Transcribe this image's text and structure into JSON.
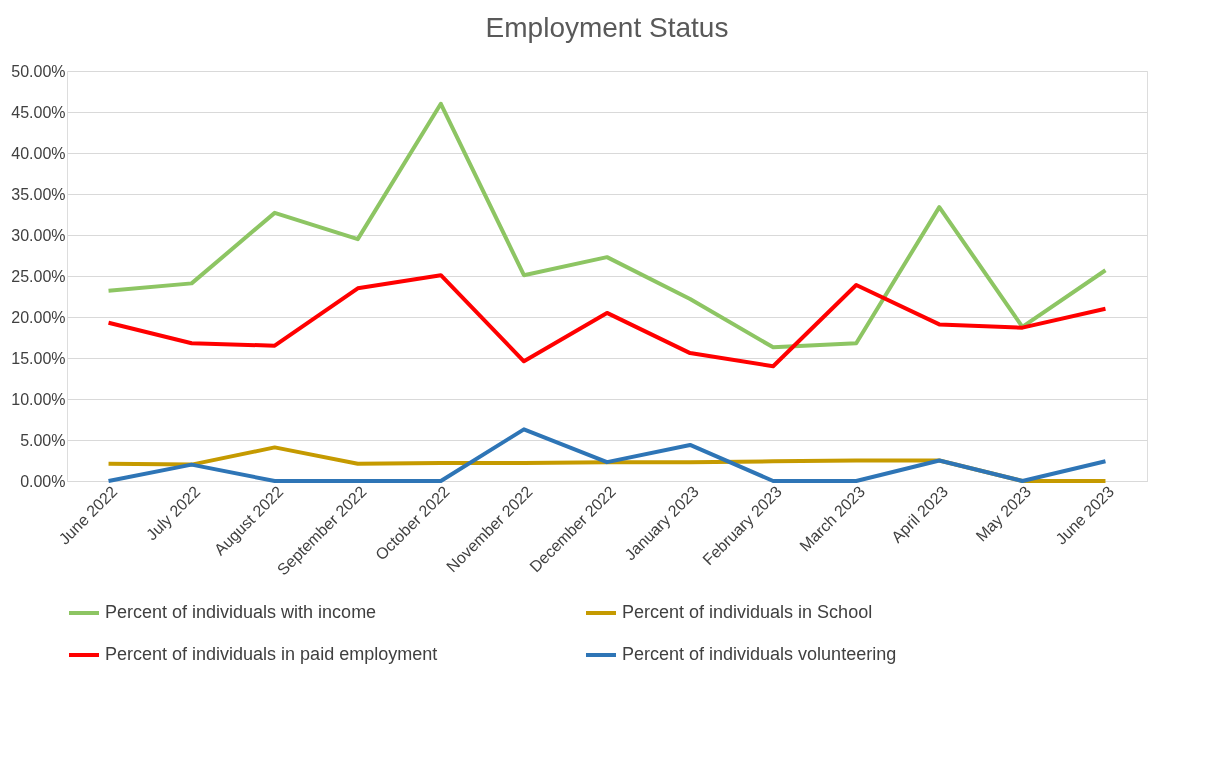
{
  "chart_data": {
    "type": "line",
    "title": "Employment Status",
    "categories": [
      "June 2022",
      "July 2022",
      "August 2022",
      "September 2022",
      "October 2022",
      "November 2022",
      "December 2022",
      "January 2023",
      "February 2023",
      "March 2023",
      "April 2023",
      "May 2023",
      "June 2023"
    ],
    "series": [
      {
        "name": "Percent of individuals with income",
        "color": "#8dc563",
        "values": [
          23.2,
          24.1,
          32.7,
          29.5,
          46.0,
          25.1,
          27.3,
          22.2,
          16.3,
          16.8,
          33.4,
          18.8,
          25.7
        ]
      },
      {
        "name": "Percent of individuals in School",
        "color": "#c59a00",
        "values": [
          2.1,
          2.0,
          4.1,
          2.1,
          2.2,
          2.2,
          2.3,
          2.3,
          2.4,
          2.5,
          2.5,
          0,
          0
        ]
      },
      {
        "name": "Percent of individuals in paid employment",
        "color": "#ff0000",
        "values": [
          19.3,
          16.8,
          16.5,
          23.5,
          25.1,
          14.6,
          20.5,
          15.6,
          14.0,
          23.9,
          19.1,
          18.7,
          21.0
        ]
      },
      {
        "name": "Percent of individuals volunteering",
        "color": "#2e75b6",
        "values": [
          0,
          2.0,
          0,
          0,
          0,
          6.3,
          2.3,
          4.4,
          0,
          0,
          2.5,
          0,
          2.4
        ]
      }
    ],
    "ylim": [
      0,
      50
    ],
    "yticks": [
      {
        "value": 0,
        "label": "0.00%"
      },
      {
        "value": 5,
        "label": "5.00%"
      },
      {
        "value": 10,
        "label": "10.00%"
      },
      {
        "value": 15,
        "label": "15.00%"
      },
      {
        "value": 20,
        "label": "20.00%"
      },
      {
        "value": 25,
        "label": "25.00%"
      },
      {
        "value": 30,
        "label": "30.00%"
      },
      {
        "value": 35,
        "label": "35.00%"
      },
      {
        "value": 40,
        "label": "40.00%"
      },
      {
        "value": 45,
        "label": "45.00%"
      },
      {
        "value": 50,
        "label": "50.00%"
      }
    ],
    "grid": "y",
    "legend": "bottom",
    "marker": "none",
    "line_style": "solid"
  }
}
